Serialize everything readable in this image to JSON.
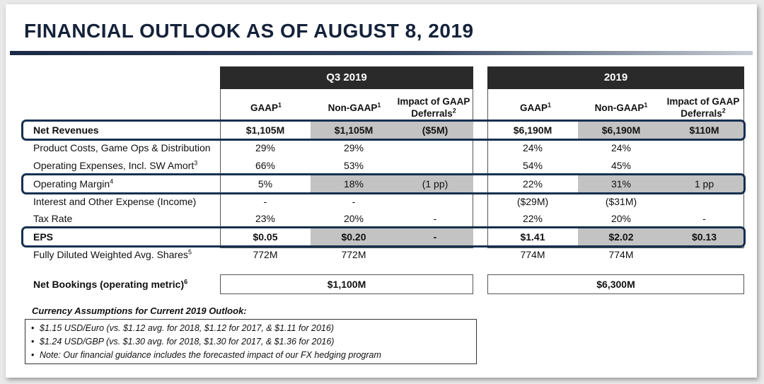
{
  "title": "FINANCIAL OUTLOOK AS OF AUGUST 8, 2019",
  "periods": [
    {
      "label": "Q3 2019",
      "cols": [
        "GAAP",
        "Non-GAAP",
        "Impact of GAAP",
        "Deferrals"
      ],
      "sups": [
        "1",
        "1",
        "2"
      ]
    },
    {
      "label": "2019",
      "cols": [
        "GAAP",
        "Non-GAAP",
        "Impact of GAAP",
        "Deferrals"
      ],
      "sups": [
        "1",
        "1",
        "2"
      ]
    }
  ],
  "rows": [
    {
      "label": "Net Revenues",
      "sup": "",
      "values": [
        "$1,105M",
        "$1,105M",
        "($5M)",
        "$6,190M",
        "$6,190M",
        "$110M"
      ]
    },
    {
      "label": "Product Costs, Game Ops & Distribution",
      "sup": "",
      "values": [
        "29%",
        "29%",
        "",
        "24%",
        "24%",
        ""
      ]
    },
    {
      "label": "Operating Expenses, Incl. SW Amort",
      "sup": "3",
      "values": [
        "66%",
        "53%",
        "",
        "54%",
        "45%",
        ""
      ]
    },
    {
      "label": "Operating Margin",
      "sup": "4",
      "values": [
        "5%",
        "18%",
        "(1 pp)",
        "22%",
        "31%",
        "1 pp"
      ]
    },
    {
      "label": "Interest and Other Expense (Income)",
      "sup": "",
      "values": [
        "-",
        "-",
        "",
        "($29M)",
        "($31M)",
        ""
      ]
    },
    {
      "label": "Tax Rate",
      "sup": "",
      "values": [
        "23%",
        "20%",
        "-",
        "22%",
        "20%",
        "-"
      ]
    },
    {
      "label": "EPS",
      "sup": "",
      "values": [
        "$0.05",
        "$0.20",
        "-",
        "$1.41",
        "$2.02",
        "$0.13"
      ]
    },
    {
      "label": "Fully Diluted Weighted Avg. Shares",
      "sup": "5",
      "values": [
        "772M",
        "772M",
        "",
        "774M",
        "774M",
        ""
      ]
    }
  ],
  "bookings": {
    "label": "Net Bookings (operating metric)",
    "sup": "6",
    "q3": "$1,100M",
    "fy": "$6,300M"
  },
  "currency": {
    "title": "Currency Assumptions for Current 2019 Outlook:",
    "bullet": "•",
    "lines": [
      "$1.15 USD/Euro (vs. $1.12 avg. for 2018, $1.12 for 2017, & $1.11 for 2016)",
      "$1.24 USD/GBP (vs. $1.30 avg. for 2018, $1.30 for 2017, & $1.36 for 2016)",
      "Note: Our financial guidance includes the forecasted impact of our FX hedging program"
    ]
  }
}
